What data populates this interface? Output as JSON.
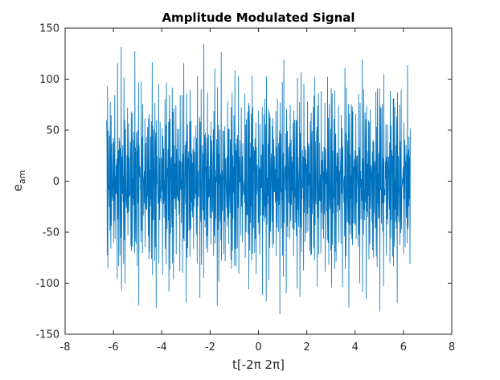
{
  "chart_data": {
    "type": "line",
    "title": "Amplitude Modulated Signal",
    "xlabel": "t[-2π 2π]",
    "ylabel_main": "e",
    "ylabel_sub": "am",
    "xlim": [
      -8,
      8
    ],
    "ylim": [
      -150,
      150
    ],
    "xticks": [
      -8,
      -6,
      -4,
      -2,
      0,
      2,
      4,
      6,
      8
    ],
    "yticks": [
      -150,
      -100,
      -50,
      0,
      50,
      100,
      150
    ],
    "xtick_labels": [
      "-8",
      "-6",
      "-4",
      "-2",
      "0",
      "2",
      "4",
      "6",
      "8"
    ],
    "ytick_labels": [
      "-150",
      "-100",
      "-50",
      "0",
      "50",
      "100",
      "150"
    ],
    "grid": false,
    "series": [
      {
        "color": "#0072bd",
        "x_range": [
          -6.2832,
          6.2832
        ],
        "sample_count": 1000,
        "peak_amplitude": 140
      }
    ]
  }
}
